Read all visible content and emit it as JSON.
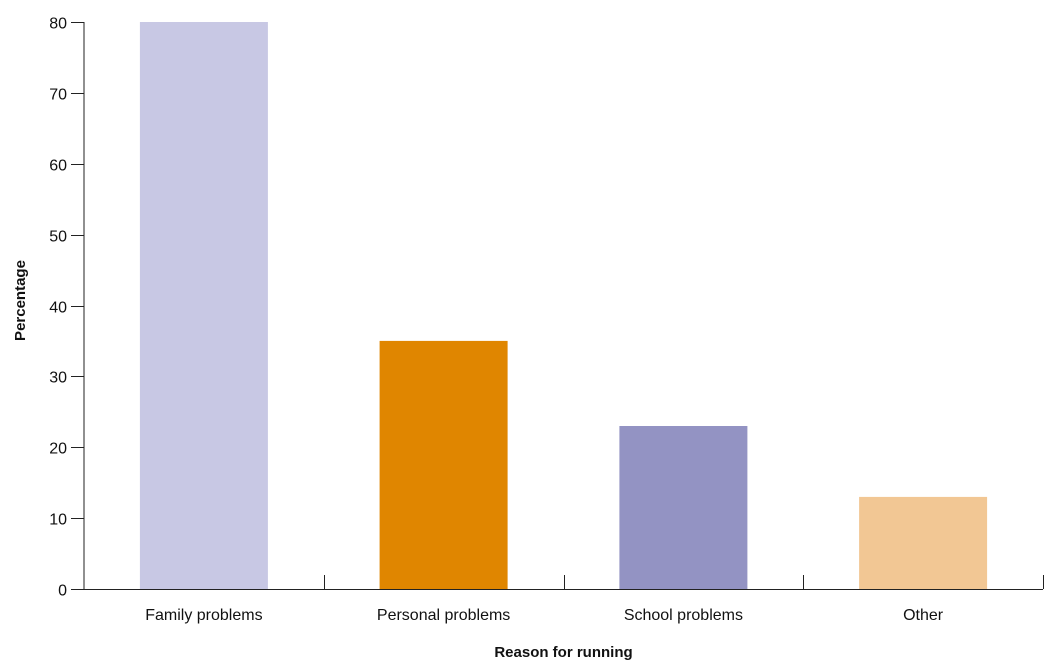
{
  "chart_data": {
    "type": "bar",
    "title": "",
    "xlabel": "Reason for running",
    "ylabel": "Percentage",
    "categories": [
      "Family problems",
      "Personal problems",
      "School problems",
      "Other"
    ],
    "values": [
      80,
      35,
      23,
      13
    ],
    "colors": [
      "#c8c8e4",
      "#e08600",
      "#9393c3",
      "#f2c794"
    ],
    "ylim": [
      0,
      80
    ],
    "yticks": [
      0,
      10,
      20,
      30,
      40,
      50,
      60,
      70,
      80
    ],
    "grid": false,
    "legend": "none"
  }
}
